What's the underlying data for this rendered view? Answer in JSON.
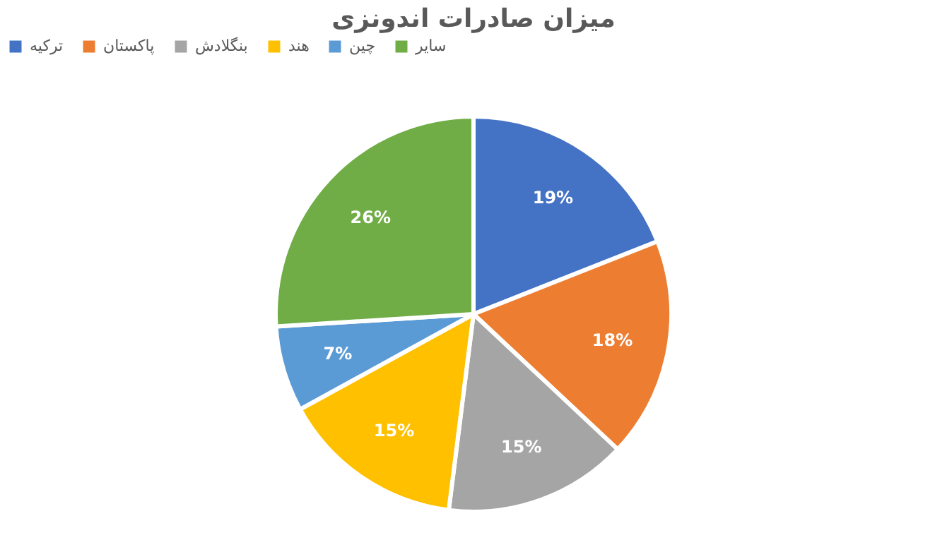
{
  "chart_data": {
    "type": "pie",
    "title": "میزان صادرات اندونزی",
    "categories": [
      "ترکیه",
      "پاکستان",
      "بنگلادش",
      "هند",
      "چین",
      "سایر"
    ],
    "values": [
      19,
      18,
      15,
      15,
      7,
      26
    ],
    "colors": [
      "#4472c4",
      "#ed7d31",
      "#a5a5a5",
      "#ffc000",
      "#5b9bd5",
      "#70ad47"
    ],
    "value_labels": [
      "19%",
      "18%",
      "15%",
      "15%",
      "7%",
      "26%"
    ],
    "legend": "top"
  }
}
